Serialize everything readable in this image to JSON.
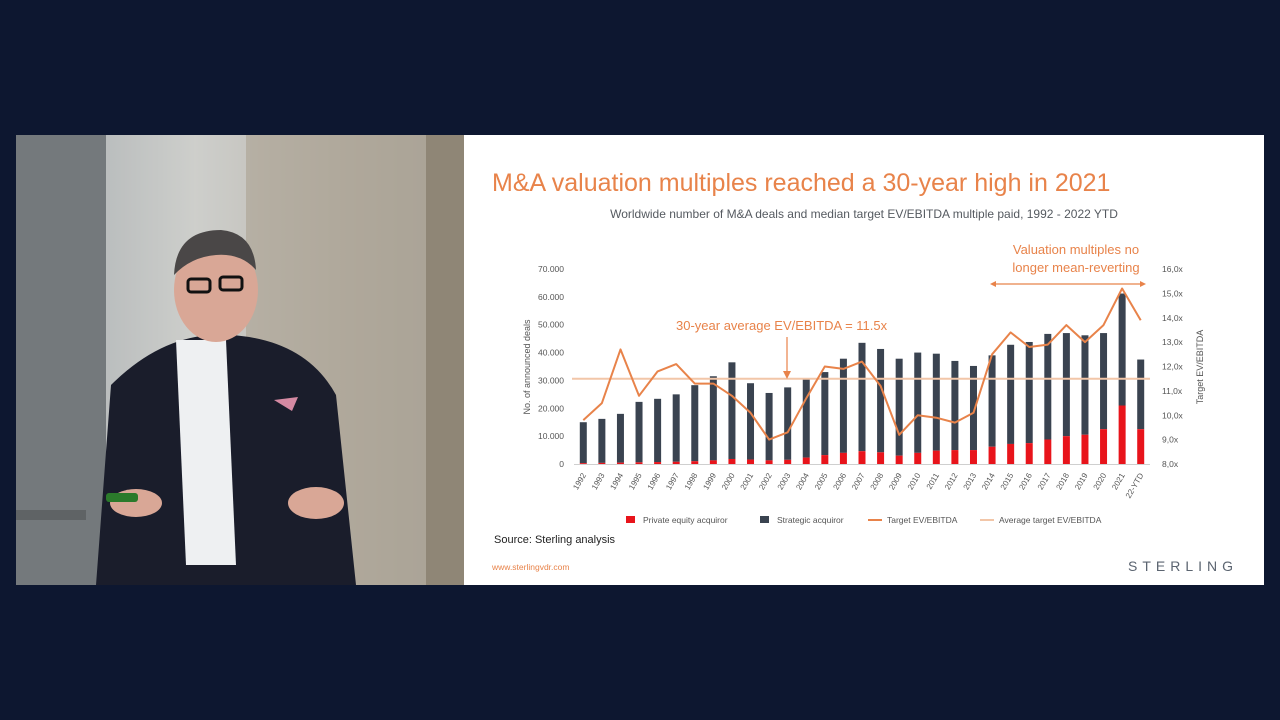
{
  "slide": {
    "title": "M&A valuation multiples reached a 30-year high in 2021",
    "subtitle": "Worldwide number of M&A deals and median target EV/EBITDA multiple paid, 1992 - 2022 YTD",
    "source": "Source: Sterling analysis",
    "url": "www.sterlingvdr.com",
    "brand": "STERLING"
  },
  "colors": {
    "private_equity": "#e8141b",
    "strategic": "#3a4350",
    "target_line": "#e8834a",
    "average_line": "#f2c6a8",
    "title": "#e8834a"
  },
  "chart_data": {
    "type": "bar",
    "stacked": true,
    "title": "Worldwide number of M&A deals and median target EV/EBITDA multiple paid, 1992 - 2022 YTD",
    "categories": [
      "1992",
      "1993",
      "1994",
      "1995",
      "1996",
      "1997",
      "1998",
      "1999",
      "2000",
      "2001",
      "2002",
      "2003",
      "2004",
      "2005",
      "2006",
      "2007",
      "2008",
      "2009",
      "2010",
      "2011",
      "2012",
      "2013",
      "2014",
      "2015",
      "2016",
      "2017",
      "2018",
      "2019",
      "2020",
      "2021",
      "22-YTD"
    ],
    "ylabel": "No. of announced deals",
    "y2label": "Target EV/EBITDA",
    "ylim": [
      0,
      70000
    ],
    "y2lim": [
      8.0,
      16.0
    ],
    "y_ticks": [
      "70.000",
      "60.000",
      "50.000",
      "40.000",
      "30.000",
      "20.000",
      "10.000",
      "0"
    ],
    "y2_ticks": [
      "16,0x",
      "15,0x",
      "14,0x",
      "13,0x",
      "12,0x",
      "11,0x",
      "10,0x",
      "9,0x",
      "8,0x"
    ],
    "series": [
      {
        "name": "Private equity acquiror",
        "kind": "bar",
        "values": [
          300,
          400,
          500,
          600,
          700,
          800,
          1000,
          1300,
          1800,
          1600,
          1300,
          1500,
          2300,
          3200,
          4000,
          4600,
          4200,
          3000,
          4000,
          4800,
          5000,
          5000,
          6200,
          7200,
          7500,
          8800,
          10000,
          10500,
          12500,
          21000,
          12500
        ]
      },
      {
        "name": "Strategic acquiror",
        "kind": "bar",
        "values": [
          14700,
          15800,
          17500,
          21700,
          22700,
          24200,
          27300,
          30200,
          34700,
          27400,
          24200,
          26000,
          28200,
          29800,
          33800,
          38900,
          37100,
          34800,
          36000,
          34800,
          32000,
          30200,
          32800,
          35600,
          36300,
          37900,
          37000,
          35700,
          34500,
          40200,
          25000
        ]
      },
      {
        "name": "Target EV/EBITDA",
        "kind": "line",
        "values": [
          9.8,
          10.5,
          12.7,
          10.8,
          11.8,
          12.1,
          11.3,
          11.3,
          10.8,
          10.1,
          9.0,
          9.3,
          10.7,
          12.0,
          11.9,
          12.2,
          11.2,
          9.2,
          10.0,
          9.9,
          9.7,
          10.1,
          12.5,
          13.4,
          12.8,
          12.9,
          13.7,
          13.0,
          13.7,
          15.2,
          13.9
        ]
      },
      {
        "name": "Average target EV/EBITDA",
        "kind": "line",
        "constant": 11.5
      }
    ],
    "annotations": {
      "average": "30-year average EV/EBITDA = 11.5x",
      "recent": [
        "Valuation multiples no",
        "longer mean-reverting"
      ]
    },
    "legend_position": "bottom"
  }
}
